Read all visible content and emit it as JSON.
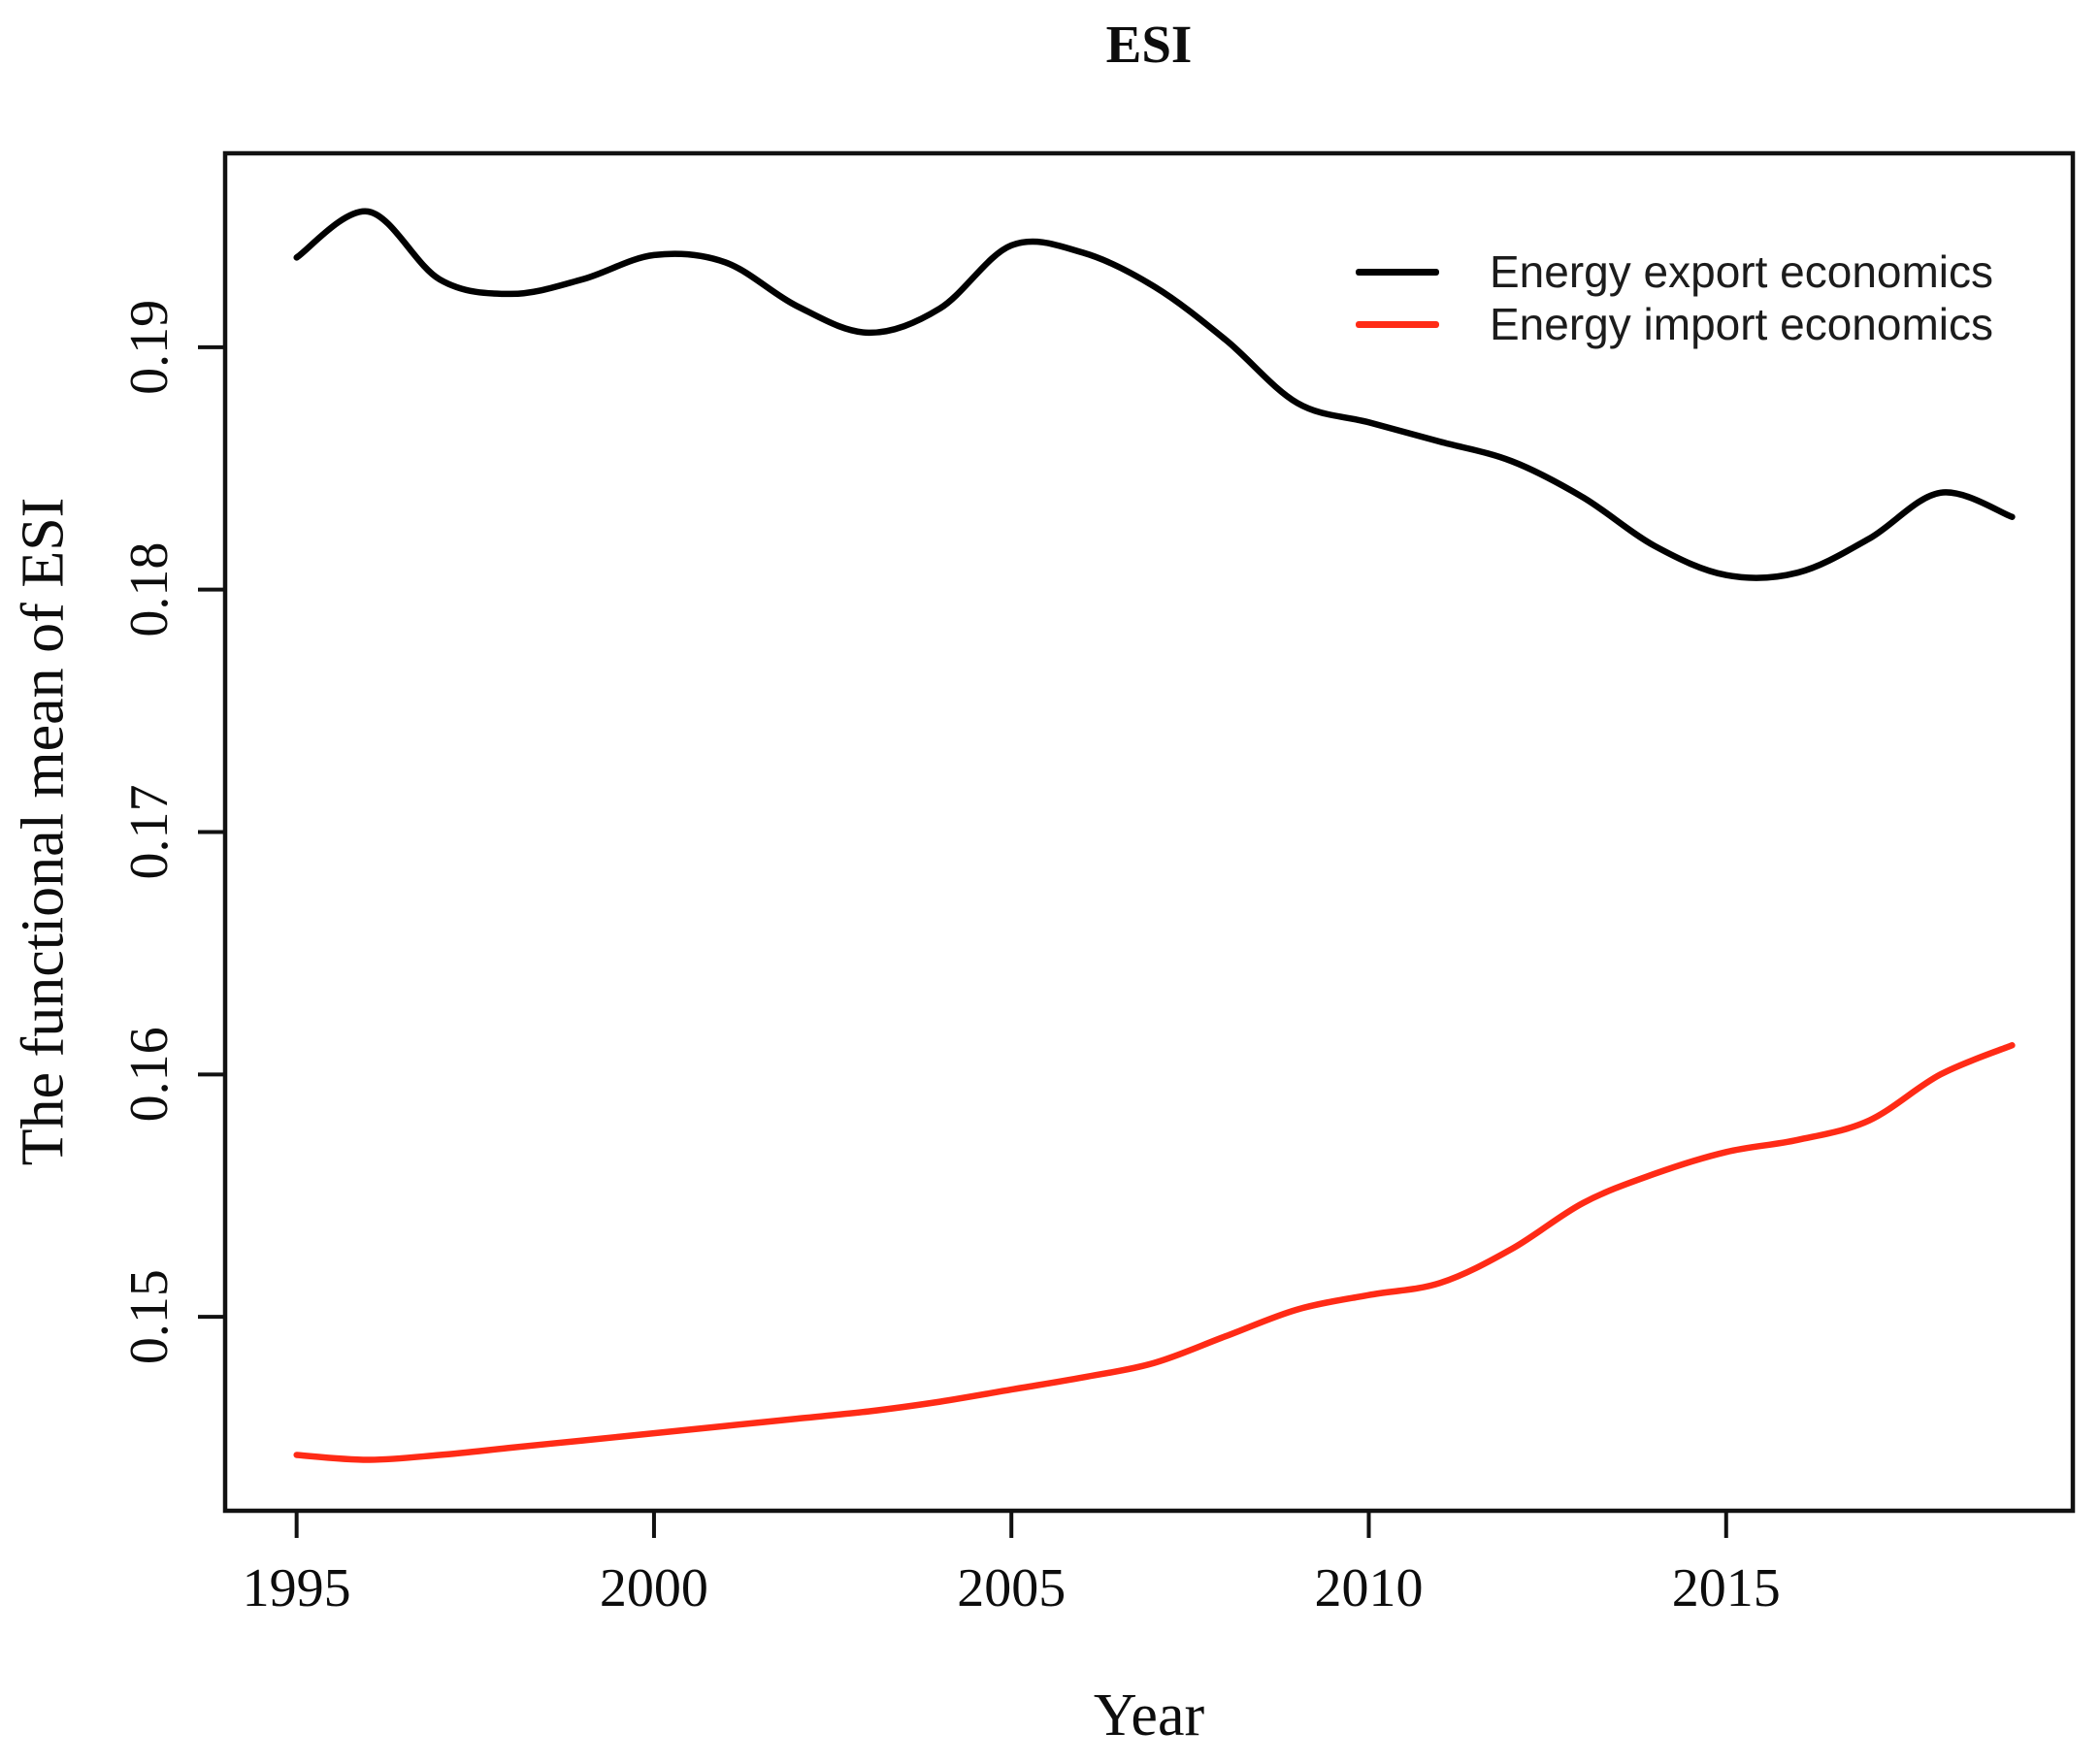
{
  "chart_data": {
    "type": "line",
    "title": "ESI",
    "xlabel": "Year",
    "ylabel": "The functional mean of ESI",
    "grid": false,
    "legend_position": "top-right",
    "xlim": [
      1994.0,
      2019.85
    ],
    "ylim": [
      0.142,
      0.198
    ],
    "x_ticks": [
      1995,
      2000,
      2005,
      2010,
      2015
    ],
    "x_tick_labels": [
      "1995",
      "2000",
      "2005",
      "2010",
      "2015"
    ],
    "y_ticks": [
      0.15,
      0.16,
      0.17,
      0.18,
      0.19
    ],
    "y_tick_labels": [
      "0.15",
      "0.16",
      "0.17",
      "0.18",
      "0.19"
    ],
    "x": [
      1995,
      1996,
      1997,
      1998,
      1999,
      2000,
      2001,
      2002,
      2003,
      2004,
      2005,
      2006,
      2007,
      2008,
      2009,
      2010,
      2011,
      2012,
      2013,
      2014,
      2015,
      2016,
      2017,
      2018,
      2019
    ],
    "series": [
      {
        "name": "Energy export economics",
        "color": "#000000",
        "values": [
          0.1937,
          0.1956,
          0.1928,
          0.1922,
          0.1928,
          0.1938,
          0.1935,
          0.1917,
          0.1906,
          0.1916,
          0.1942,
          0.1939,
          0.1925,
          0.1903,
          0.1877,
          0.1869,
          0.1861,
          0.1853,
          0.1838,
          0.1818,
          0.1806,
          0.1807,
          0.1821,
          0.184,
          0.183
        ]
      },
      {
        "name": "Energy import economics",
        "color": "#ff2b16",
        "values": [
          0.1443,
          0.1441,
          0.1443,
          0.1446,
          0.1449,
          0.1452,
          0.1455,
          0.1458,
          0.1461,
          0.1465,
          0.147,
          0.1475,
          0.1481,
          0.1492,
          0.1503,
          0.1509,
          0.1514,
          0.1528,
          0.1547,
          0.1559,
          0.1568,
          0.1573,
          0.1581,
          0.16,
          0.1612
        ]
      }
    ]
  }
}
